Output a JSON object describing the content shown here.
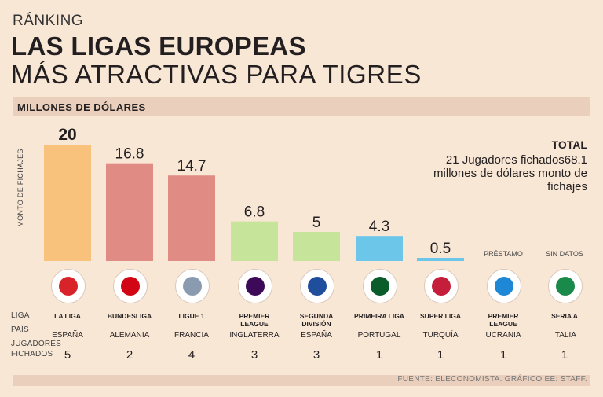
{
  "header": {
    "kicker": "RÁNKING",
    "title_line1": "LAS LIGAS EUROPEAS",
    "title_line2": "MÁS ATRACTIVAS PARA TIGRES",
    "unit": "MILLONES DE DÓLARES",
    "y_axis_label": "MONTO DE FICHAJES"
  },
  "total": {
    "title": "TOTAL",
    "text": "21 Jugadores fichados68.1 millones de dólares monto de fichajes"
  },
  "row_labels": {
    "league": "LIGA",
    "country": "PAÍS",
    "players": "JUGADORES FICHADOS"
  },
  "footer": "FUENTE: ELECONOMISTA. GRÁFICO EE: STAFF.",
  "chart_data": {
    "type": "bar",
    "title": "LAS LIGAS EUROPEAS MÁS ATRACTIVAS PARA TIGRES",
    "ylabel": "MONTO DE FICHAJES",
    "unit": "MILLONES DE DÓLARES",
    "categories": [
      "LA LIGA",
      "BUNDESLIGA",
      "LIGUE 1",
      "PREMIER LEAGUE",
      "SEGUNDA DIVISIÓN",
      "PRIMEIRA LIGA",
      "SUPER LIGA",
      "PREMIER LEAGUE",
      "SERIA A"
    ],
    "values": [
      20,
      16.8,
      14.7,
      6.8,
      5,
      4.3,
      0.5,
      null,
      null
    ],
    "value_labels": [
      "20",
      "16.8",
      "14.7",
      "6.8",
      "5",
      "4.3",
      "0.5",
      "",
      ""
    ],
    "notes": [
      "",
      "",
      "",
      "",
      "",
      "",
      "",
      "PRÉSTAMO",
      "SIN DATOS"
    ],
    "countries": [
      "ESPAÑA",
      "ALEMANIA",
      "FRANCIA",
      "INGLATERRA",
      "ESPAÑA",
      "PORTUGAL",
      "TURQUÍA",
      "UCRANIA",
      "ITALIA"
    ],
    "players": [
      5,
      2,
      4,
      3,
      3,
      1,
      1,
      1,
      1
    ],
    "colors": [
      "#f8c27d",
      "#e08c85",
      "#e08c85",
      "#c6e59a",
      "#c6e59a",
      "#6cc6ea",
      "#6cc6ea",
      null,
      null
    ],
    "logo_colors": [
      "#d8232a",
      "#d20515",
      "#8a9bb0",
      "#3d0a5a",
      "#1f4e9c",
      "#0a5d2b",
      "#c41e3a",
      "#1e88d6",
      "#1a8a4a"
    ],
    "ylim": [
      0,
      20
    ],
    "grid": false
  }
}
